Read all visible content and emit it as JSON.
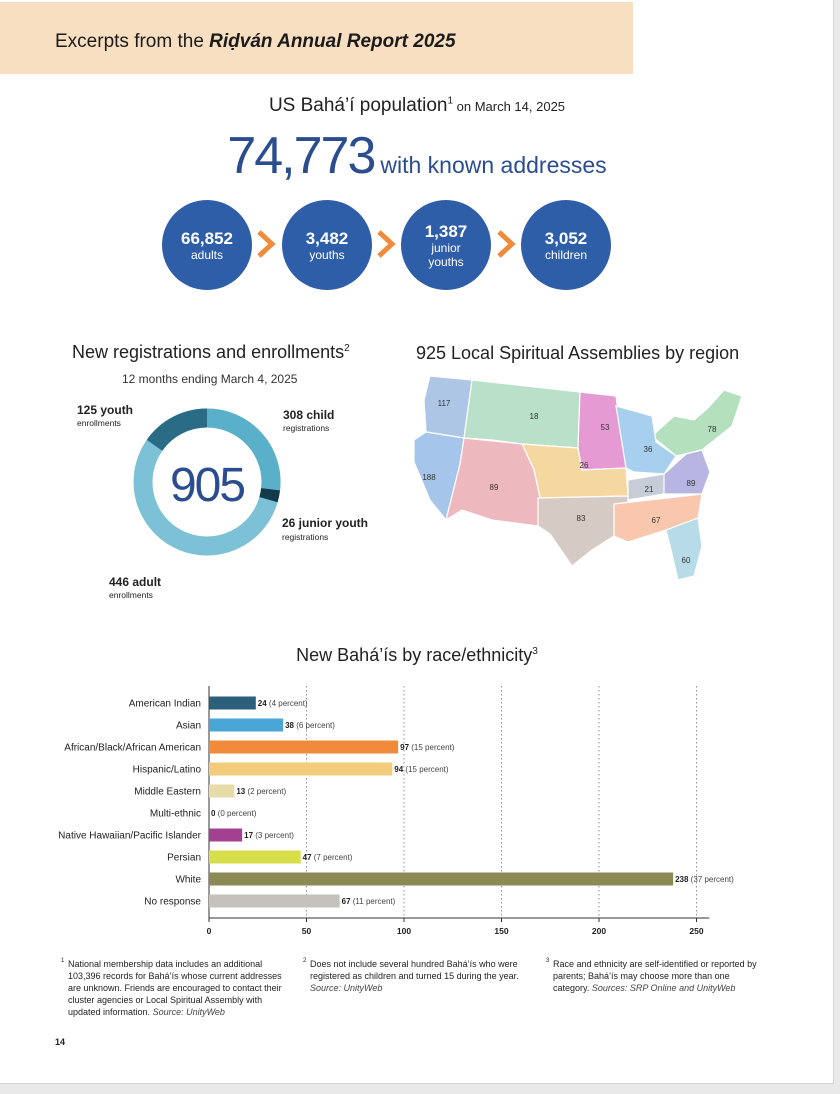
{
  "banner": {
    "prefix": "Excerpts from the ",
    "title": "Riḍván Annual Report 2025"
  },
  "population": {
    "title": "US Bahá’í population",
    "footnote_ref": "1",
    "date": " on March 14, 2025",
    "total": "74,773",
    "total_suffix": "with known addresses",
    "groups": [
      {
        "number": "66,852",
        "label": "adults"
      },
      {
        "number": "3,482",
        "label": "youths"
      },
      {
        "number": "1,387",
        "label": "junior youths"
      },
      {
        "number": "3,052",
        "label": "children"
      }
    ]
  },
  "registrations": {
    "title": "New registrations and enrollments",
    "footnote_ref": "2",
    "subtitle": "12 months ending March 4, 2025",
    "total": "905",
    "segments": [
      {
        "number": "125 youth",
        "label": "enrollments",
        "value": 125,
        "color": "#2a6b85"
      },
      {
        "number": "308 child",
        "label": "registrations",
        "value": 308,
        "color": "#5ab0c8"
      },
      {
        "number": "26 junior youth",
        "label": "registrations",
        "value": 26,
        "color": "#123a4a"
      },
      {
        "number": "446 adult",
        "label": "enrollments",
        "value": 446,
        "color": "#7cc1d6"
      }
    ]
  },
  "assemblies": {
    "title": "925 Local Spiritual Assemblies by region",
    "regions": [
      {
        "value": "117",
        "color": "#aec6e6"
      },
      {
        "value": "18",
        "color": "#b9e0c8"
      },
      {
        "value": "53",
        "color": "#e59ad3"
      },
      {
        "value": "78",
        "color": "#b4e0bd"
      },
      {
        "value": "36",
        "color": "#a7d0ee"
      },
      {
        "value": "26",
        "color": "#f5d8a0"
      },
      {
        "value": "188",
        "color": "#a5c6ea"
      },
      {
        "value": "89",
        "color": "#eeb8bf"
      },
      {
        "value": "21",
        "color": "#c6cdd6"
      },
      {
        "value": "89",
        "color": "#b7b5e2"
      },
      {
        "value": "83",
        "color": "#d6cbc4"
      },
      {
        "value": "67",
        "color": "#f8c7ad"
      },
      {
        "value": "60",
        "color": "#b7dce8"
      }
    ]
  },
  "chart_data": {
    "type": "bar",
    "orientation": "horizontal",
    "title": "New Bahá’ís by race/ethnicity",
    "footnote_ref": "3",
    "categories": [
      "American Indian",
      "Asian",
      "African/Black/African American",
      "Hispanic/Latino",
      "Middle Eastern",
      "Multi-ethnic",
      "Native Hawaiian/Pacific Islander",
      "Persian",
      "White",
      "No response"
    ],
    "values": [
      24,
      38,
      97,
      94,
      13,
      0,
      17,
      47,
      238,
      67
    ],
    "percent_labels": [
      "(4 percent)",
      "(6 percent)",
      "(15 percent)",
      "(15 percent)",
      "(2 percent)",
      "(0 percent)",
      "(3 percent)",
      "(7 percent)",
      "(37 percent)",
      "(11 percent)"
    ],
    "colors": [
      "#2c5f7a",
      "#4aa6d6",
      "#ef8b3a",
      "#f2cc7a",
      "#e6dcaa",
      "#cccccc",
      "#a2418f",
      "#d6df4a",
      "#8b8a54",
      "#c5c1bb"
    ],
    "xlim": [
      0,
      255
    ],
    "xticks": [
      0,
      50,
      100,
      150,
      200,
      250
    ],
    "grid": "vertical dotted"
  },
  "footnotes": [
    {
      "ref": "1",
      "text": "National membership data includes an additional 103,396 records for Bahá’ís whose current addresses are unknown. Friends are encouraged to contact their cluster agencies or Local Spiritual Assembly with updated information. ",
      "source": "Source: UnityWeb"
    },
    {
      "ref": "2",
      "text": "Does not include several hundred Bahá’ís who were registered as children and turned 15 during the year. ",
      "source": "Source: UnityWeb"
    },
    {
      "ref": "3",
      "text": "Race and ethnicity are self-identified or reported by parents; Bahá’ís may choose more than one category. ",
      "source": "Sources: SRP Online and UnityWeb"
    }
  ],
  "page_number": "14"
}
